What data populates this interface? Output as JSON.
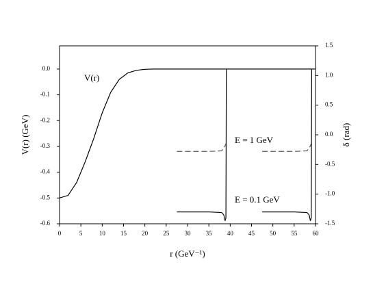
{
  "chart_data": {
    "type": "line",
    "xlabel": "r (GeV⁻¹)",
    "ylabel": "V(r) (GeV)",
    "y2label": "δ (rad)",
    "xlim": [
      0,
      60
    ],
    "xticks": [
      0,
      5,
      10,
      15,
      20,
      25,
      30,
      35,
      40,
      45,
      50,
      55,
      60
    ],
    "ylim": [
      -0.6,
      0.09
    ],
    "yticks": [
      {
        "value": 0,
        "label": "0.0"
      },
      -0.1,
      -0.2,
      -0.3,
      -0.4,
      -0.5,
      -0.6
    ],
    "y2lim": [
      -1.5,
      1.5
    ],
    "y2ticks": [
      1.5,
      {
        "value": 1,
        "label": "1.0"
      },
      0.5,
      {
        "value": 0,
        "label": "0.0"
      },
      -0.5,
      {
        "value": -1,
        "label": "-1.0"
      },
      -1.5
    ],
    "series": [
      {
        "name": "V(r)",
        "color": "#000000",
        "linestyle": "solid",
        "x": [
          0,
          2,
          4,
          6,
          8,
          10,
          12,
          14,
          16,
          18,
          20,
          22,
          25,
          30,
          40,
          50,
          60
        ],
        "values": [
          -0.5,
          -0.49,
          -0.44,
          -0.36,
          -0.27,
          -0.17,
          -0.09,
          -0.04,
          -0.015,
          -0.005,
          -0.001,
          0,
          0,
          0,
          0,
          0,
          0
        ]
      },
      {
        "name": "E = 1 GeV",
        "color": "#555555",
        "linestyle": "dashed",
        "axis": "y2",
        "x": [
          27.5,
          30,
          35,
          38,
          38.7,
          39,
          43,
          47.5,
          50,
          55,
          58,
          58.7,
          59
        ],
        "values": [
          -0.28,
          -0.28,
          -0.28,
          -0.27,
          -0.2,
          -0.15,
          null,
          -0.28,
          -0.28,
          -0.28,
          -0.27,
          -0.2,
          -0.15
        ]
      },
      {
        "name": "E = 0.1 GeV",
        "color": "#000000",
        "linestyle": "solid",
        "axis": "y2",
        "x": [
          27.5,
          30,
          35,
          38,
          38.5,
          38.8,
          39,
          39.1,
          43,
          47.5,
          50,
          55,
          58,
          58.5,
          58.8,
          59,
          59.1
        ],
        "values": [
          -1.3,
          -1.3,
          -1.3,
          -1.31,
          -1.35,
          -1.45,
          -1.4,
          1.1,
          null,
          -1.3,
          -1.3,
          -1.3,
          -1.31,
          -1.35,
          -1.45,
          -1.4,
          1.1
        ]
      }
    ]
  }
}
